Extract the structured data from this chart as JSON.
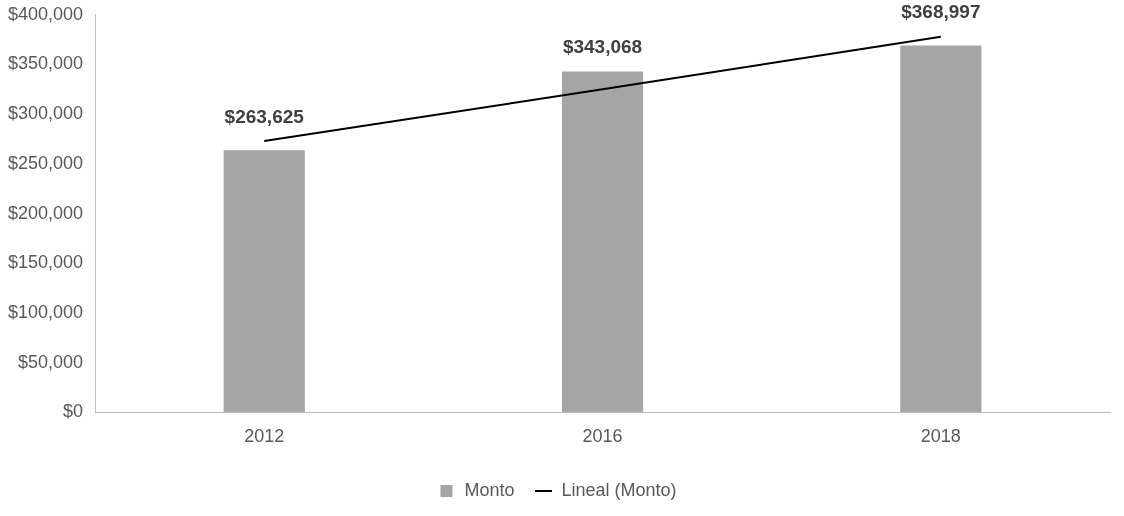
{
  "chart_data": {
    "type": "bar",
    "categories": [
      "2012",
      "2016",
      "2018"
    ],
    "series": [
      {
        "name": "Monto",
        "color": "#a5a5a5",
        "values": [
          263625,
          343068,
          368997
        ],
        "value_labels": [
          "$263,625",
          "$343,068",
          "$368,997"
        ]
      },
      {
        "name": "Lineal (Monto)",
        "type": "line",
        "color": "#000000",
        "values": [
          273000,
          325000,
          378000
        ]
      }
    ],
    "ylim": [
      0,
      400000
    ],
    "yticks": [
      {
        "value": 0,
        "label": "$0"
      },
      {
        "value": 50000,
        "label": "$50,000"
      },
      {
        "value": 100000,
        "label": "$100,000"
      },
      {
        "value": 150000,
        "label": "$150,000"
      },
      {
        "value": 200000,
        "label": "$200,000"
      },
      {
        "value": 250000,
        "label": "$250,000"
      },
      {
        "value": 300000,
        "label": "$300,000"
      },
      {
        "value": 350000,
        "label": "$350,000"
      },
      {
        "value": 400000,
        "label": "$400,000"
      }
    ],
    "grid": false,
    "legend": "bottom",
    "marker": "none",
    "line_style": "solid"
  }
}
